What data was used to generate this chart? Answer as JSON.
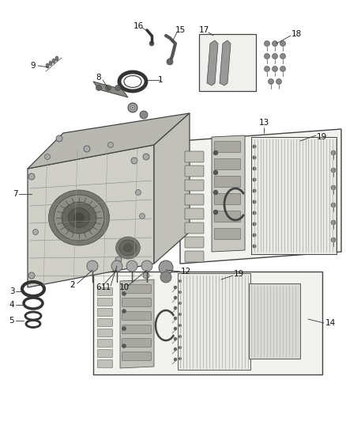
{
  "bg_color": "#ffffff",
  "lc": "#333333",
  "dgray": "#444444",
  "mgray": "#888888",
  "lgray": "#bbbbbb",
  "vlgray": "#dddddd",
  "case_face": "#c8c8c0",
  "case_top": "#b0b0a8",
  "case_right": "#bcbcb4",
  "fig_width": 4.38,
  "fig_height": 5.33,
  "dpi": 100,
  "label_fontsize": 7.0,
  "label_color": "#111111"
}
